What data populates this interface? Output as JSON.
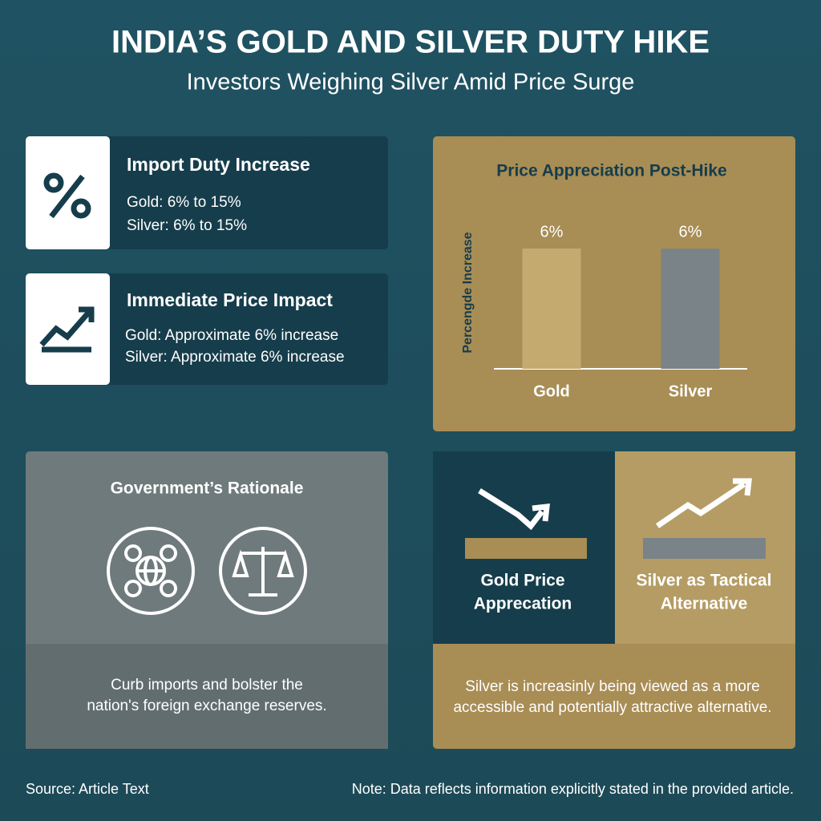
{
  "header": {
    "title": "INDIA’S GOLD AND SILVER DUTY HIKE",
    "subtitle": "Investors Weighing Silver Amid Price Surge"
  },
  "duty_card": {
    "title": "Import Duty Increase",
    "lines": [
      "Gold: 6% to 15%",
      "Silver: 6% to 15%"
    ]
  },
  "impact_card": {
    "title": "Immediate Price Impact",
    "lines": [
      "Gold: Approximate 6% increase",
      "Silver: Approximate 6% increase"
    ]
  },
  "chart_data": {
    "type": "bar",
    "title": "Price Appreciation Post-Hike",
    "y_label": "Percengde Increase",
    "categories": [
      "Gold",
      "Silver"
    ],
    "values": [
      6,
      6
    ],
    "value_labels": [
      "6%",
      "6%"
    ],
    "colors": [
      "#c4aa6f",
      "#7a8387"
    ]
  },
  "rationale": {
    "title": "Government’s Rationale",
    "lines": [
      "Curb imports and bolster the",
      "nation's foreign exchange reserves."
    ]
  },
  "comparison": {
    "gold_label": [
      "Gold Price",
      "Apprecation"
    ],
    "silver_label": [
      "Silver as Tactical",
      "Alternative"
    ],
    "lines": [
      "Silver is increasinly being viewed as a more",
      "accessible and potentially attractive alternative."
    ]
  },
  "footer": {
    "source": "Source: Article Text",
    "note": "Note: Data reflects information explicitly stated in the provided article."
  }
}
